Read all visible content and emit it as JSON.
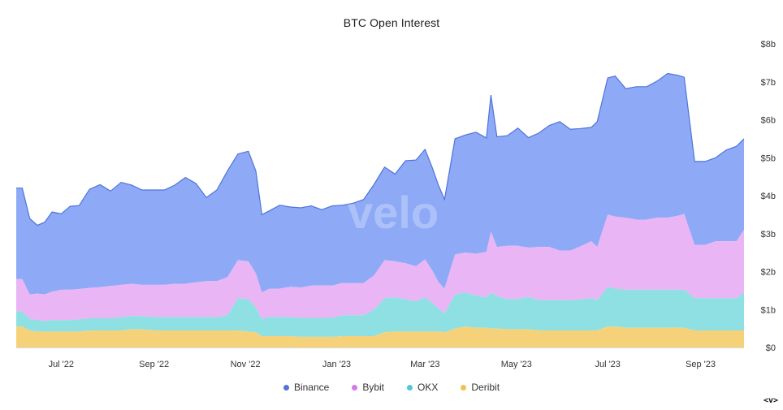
{
  "chart_data": {
    "type": "area",
    "stacked": true,
    "title": "BTC Open Interest",
    "watermark": "velo",
    "y_axis": {
      "side": "right",
      "min": 0,
      "max": 8,
      "unit": "billion USD",
      "tick_values": [
        0,
        1,
        2,
        3,
        4,
        5,
        6,
        7,
        8
      ],
      "tick_labels": [
        "$0",
        "$1b",
        "$2b",
        "$3b",
        "$4b",
        "$5b",
        "$6b",
        "$7b",
        "$8b"
      ]
    },
    "x_axis": {
      "start": "2022-06-01",
      "end": "2023-09-30",
      "tick_dates": [
        "2022-07-01",
        "2022-09-01",
        "2022-11-01",
        "2023-01-01",
        "2023-03-01",
        "2023-05-01",
        "2023-07-01",
        "2023-09-01"
      ],
      "tick_labels": [
        "Jul '22",
        "Sep '22",
        "Nov '22",
        "Jan '23",
        "Mar '23",
        "May '23",
        "Jul '23",
        "Sep '23"
      ]
    },
    "legend_position": "bottom-center",
    "grid": false,
    "dates": [
      "2022-06-01",
      "2022-06-05",
      "2022-06-10",
      "2022-06-15",
      "2022-06-20",
      "2022-06-25",
      "2022-07-01",
      "2022-07-07",
      "2022-07-13",
      "2022-07-20",
      "2022-07-27",
      "2022-08-03",
      "2022-08-10",
      "2022-08-17",
      "2022-08-24",
      "2022-09-01",
      "2022-09-08",
      "2022-09-15",
      "2022-09-22",
      "2022-09-29",
      "2022-10-06",
      "2022-10-13",
      "2022-10-20",
      "2022-10-27",
      "2022-11-03",
      "2022-11-08",
      "2022-11-12",
      "2022-11-17",
      "2022-11-24",
      "2022-12-01",
      "2022-12-08",
      "2022-12-15",
      "2022-12-22",
      "2022-12-29",
      "2023-01-05",
      "2023-01-12",
      "2023-01-19",
      "2023-01-26",
      "2023-02-02",
      "2023-02-09",
      "2023-02-16",
      "2023-02-23",
      "2023-03-01",
      "2023-03-06",
      "2023-03-10",
      "2023-03-14",
      "2023-03-21",
      "2023-03-28",
      "2023-04-04",
      "2023-04-11",
      "2023-04-14",
      "2023-04-18",
      "2023-04-25",
      "2023-05-02",
      "2023-05-09",
      "2023-05-16",
      "2023-05-23",
      "2023-05-30",
      "2023-06-06",
      "2023-06-13",
      "2023-06-20",
      "2023-06-24",
      "2023-07-01",
      "2023-07-06",
      "2023-07-13",
      "2023-07-20",
      "2023-07-27",
      "2023-08-03",
      "2023-08-10",
      "2023-08-17",
      "2023-08-21",
      "2023-08-28",
      "2023-09-04",
      "2023-09-11",
      "2023-09-18",
      "2023-09-25",
      "2023-09-30"
    ],
    "series": [
      {
        "name": "Deribit",
        "color": "#f5d27a",
        "values": [
          0.55,
          0.55,
          0.45,
          0.42,
          0.42,
          0.42,
          0.42,
          0.42,
          0.42,
          0.45,
          0.45,
          0.45,
          0.45,
          0.48,
          0.48,
          0.45,
          0.45,
          0.45,
          0.45,
          0.45,
          0.45,
          0.45,
          0.45,
          0.45,
          0.42,
          0.4,
          0.3,
          0.3,
          0.3,
          0.3,
          0.28,
          0.28,
          0.28,
          0.28,
          0.3,
          0.3,
          0.3,
          0.3,
          0.4,
          0.42,
          0.42,
          0.42,
          0.42,
          0.42,
          0.42,
          0.4,
          0.5,
          0.55,
          0.52,
          0.52,
          0.5,
          0.5,
          0.48,
          0.48,
          0.48,
          0.45,
          0.45,
          0.45,
          0.45,
          0.45,
          0.45,
          0.45,
          0.55,
          0.55,
          0.52,
          0.52,
          0.52,
          0.52,
          0.52,
          0.52,
          0.52,
          0.45,
          0.45,
          0.45,
          0.45,
          0.45,
          0.45
        ]
      },
      {
        "name": "OKX",
        "color": "#8ee0e3",
        "values": [
          0.4,
          0.4,
          0.3,
          0.3,
          0.28,
          0.3,
          0.3,
          0.3,
          0.32,
          0.32,
          0.32,
          0.32,
          0.35,
          0.35,
          0.35,
          0.35,
          0.35,
          0.35,
          0.35,
          0.35,
          0.35,
          0.35,
          0.4,
          0.85,
          0.85,
          0.65,
          0.45,
          0.5,
          0.5,
          0.5,
          0.5,
          0.5,
          0.5,
          0.5,
          0.55,
          0.55,
          0.55,
          0.7,
          0.9,
          0.9,
          0.85,
          0.8,
          0.9,
          0.75,
          0.6,
          0.5,
          0.9,
          0.9,
          0.85,
          0.8,
          0.95,
          0.85,
          0.8,
          0.8,
          0.85,
          0.8,
          0.8,
          0.8,
          0.8,
          0.82,
          0.85,
          0.8,
          1.05,
          1.0,
          1.0,
          1.0,
          1.0,
          1.0,
          1.0,
          1.0,
          1.0,
          0.85,
          0.85,
          0.85,
          0.85,
          0.85,
          1.0
        ]
      },
      {
        "name": "Bybit",
        "color": "#e9b5f5",
        "values": [
          0.85,
          0.85,
          0.65,
          0.7,
          0.7,
          0.75,
          0.8,
          0.8,
          0.8,
          0.8,
          0.82,
          0.85,
          0.85,
          0.85,
          0.82,
          0.85,
          0.85,
          0.88,
          0.88,
          0.92,
          0.95,
          0.95,
          1.0,
          1.0,
          1.0,
          0.9,
          0.7,
          0.75,
          0.75,
          0.8,
          0.8,
          0.85,
          0.85,
          0.85,
          0.85,
          0.85,
          0.85,
          0.9,
          1.0,
          0.95,
          0.95,
          0.92,
          1.0,
          0.85,
          0.7,
          0.65,
          1.05,
          1.05,
          1.1,
          1.2,
          1.6,
          1.3,
          1.4,
          1.4,
          1.3,
          1.4,
          1.4,
          1.3,
          1.3,
          1.4,
          1.5,
          1.4,
          1.9,
          1.9,
          1.9,
          1.85,
          1.85,
          1.9,
          1.9,
          1.95,
          2.0,
          1.4,
          1.4,
          1.5,
          1.5,
          1.5,
          1.65
        ]
      },
      {
        "name": "Binance",
        "color": "#8eaaf7",
        "values": [
          2.4,
          2.4,
          2.0,
          1.8,
          1.9,
          2.1,
          2.0,
          2.2,
          2.2,
          2.6,
          2.7,
          2.5,
          2.7,
          2.6,
          2.5,
          2.5,
          2.5,
          2.6,
          2.8,
          2.6,
          2.2,
          2.4,
          2.8,
          2.8,
          2.9,
          2.7,
          2.05,
          2.05,
          2.2,
          2.1,
          2.1,
          2.1,
          2.0,
          2.1,
          2.05,
          2.1,
          2.2,
          2.4,
          2.45,
          2.3,
          2.7,
          2.8,
          2.9,
          2.7,
          2.55,
          2.35,
          3.05,
          3.1,
          3.2,
          3.0,
          3.6,
          2.9,
          2.9,
          3.1,
          2.9,
          3.0,
          3.2,
          3.4,
          3.2,
          3.1,
          3.0,
          3.3,
          3.6,
          3.7,
          3.4,
          3.5,
          3.5,
          3.6,
          3.8,
          3.7,
          3.6,
          2.2,
          2.2,
          2.2,
          2.4,
          2.5,
          2.4
        ]
      }
    ],
    "legend_order": [
      "Binance",
      "Bybit",
      "OKX",
      "Deribit"
    ]
  },
  "footer": {
    "tag": "<v>"
  }
}
